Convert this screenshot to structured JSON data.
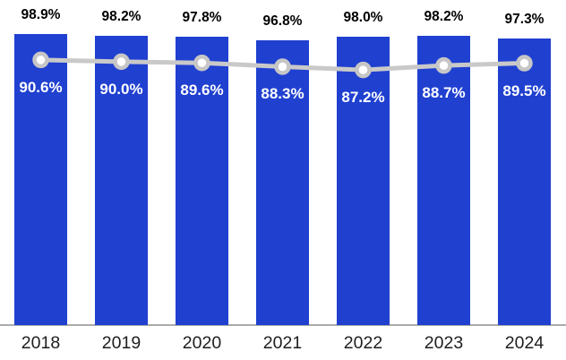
{
  "chart_data": {
    "type": "bar",
    "title": "",
    "xlabel": "",
    "ylabel": "",
    "categories": [
      "2018",
      "2019",
      "2020",
      "2021",
      "2022",
      "2023",
      "2024"
    ],
    "series": [
      {
        "name": "bar-series",
        "type": "bar",
        "values": [
          98.9,
          98.2,
          97.8,
          96.8,
          98.0,
          98.2,
          97.3
        ],
        "labels": [
          "98.9%",
          "98.2%",
          "97.8%",
          "96.8%",
          "98.0%",
          "98.2%",
          "97.3%"
        ],
        "color": "#2040d0",
        "label_color": "#000000",
        "label_position": "above-bar"
      },
      {
        "name": "line-series",
        "type": "line",
        "values": [
          90.6,
          90.0,
          89.6,
          88.3,
          87.2,
          88.7,
          89.5
        ],
        "labels": [
          "90.6%",
          "90.0%",
          "89.6%",
          "88.3%",
          "87.2%",
          "88.7%",
          "89.5%"
        ],
        "color": "#c9c9c9",
        "marker": "open-circle",
        "marker_fill": "#ffffff",
        "marker_stroke": "#c6c6c6",
        "label_color": "#ffffff",
        "label_position": "below-marker"
      }
    ],
    "ylim": [
      0,
      110
    ],
    "grid": false,
    "legend_position": "none",
    "y_axis_visible": false,
    "x_axis_line_color": "#ababab",
    "background_color": "#ffffff"
  }
}
